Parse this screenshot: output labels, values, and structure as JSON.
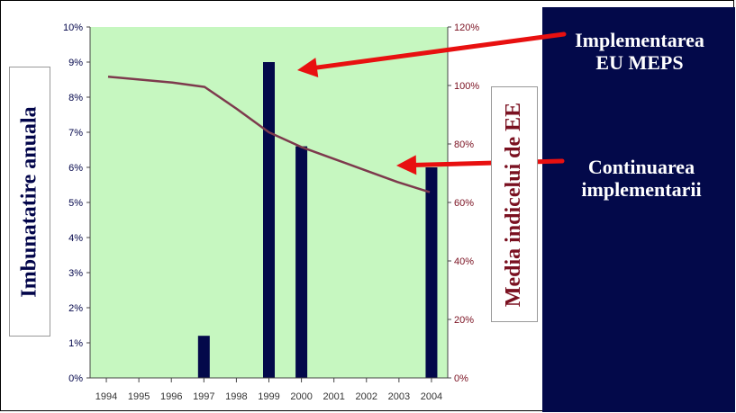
{
  "chart_data": {
    "type": "bar",
    "categories": [
      "1994",
      "1995",
      "1996",
      "1997",
      "1998",
      "1999",
      "2000",
      "2001",
      "2002",
      "2003",
      "2004"
    ],
    "series": [
      {
        "type": "bar",
        "axis": "left",
        "values": [
          0,
          0,
          0,
          1.2,
          0,
          9.0,
          6.6,
          0,
          0,
          0,
          6.0
        ]
      },
      {
        "type": "line",
        "axis": "right",
        "values": [
          103,
          102,
          101,
          99.5,
          92,
          84,
          79,
          75,
          71,
          67,
          63.5
        ]
      }
    ],
    "ylabel_left": "Imbunatatire anuala",
    "ylabel_right": "Media indicelui de EE",
    "ylim_left": [
      0,
      10
    ],
    "ylim_right": [
      0,
      120
    ],
    "yticks_left": [
      "0%",
      "1%",
      "2%",
      "3%",
      "4%",
      "5%",
      "6%",
      "7%",
      "8%",
      "9%",
      "10%"
    ],
    "yticks_right": [
      "0%",
      "20%",
      "40%",
      "60%",
      "80%",
      "100%",
      "120%"
    ],
    "annotations": [
      {
        "lines": [
          "Implementarea",
          "EU MEPS"
        ],
        "points_to": "1999"
      },
      {
        "lines": [
          "Continuarea",
          "implementarii"
        ],
        "points_to": "line"
      }
    ],
    "colors": {
      "plot_bg": "#c6f7c0",
      "bar": "#03094a",
      "line": "#7d3a4d",
      "arrow": "#e81010",
      "left_axis_text": "#02054a",
      "right_axis_text": "#7a1020",
      "panel": "#03094a"
    },
    "grid": false,
    "legend": "none"
  }
}
